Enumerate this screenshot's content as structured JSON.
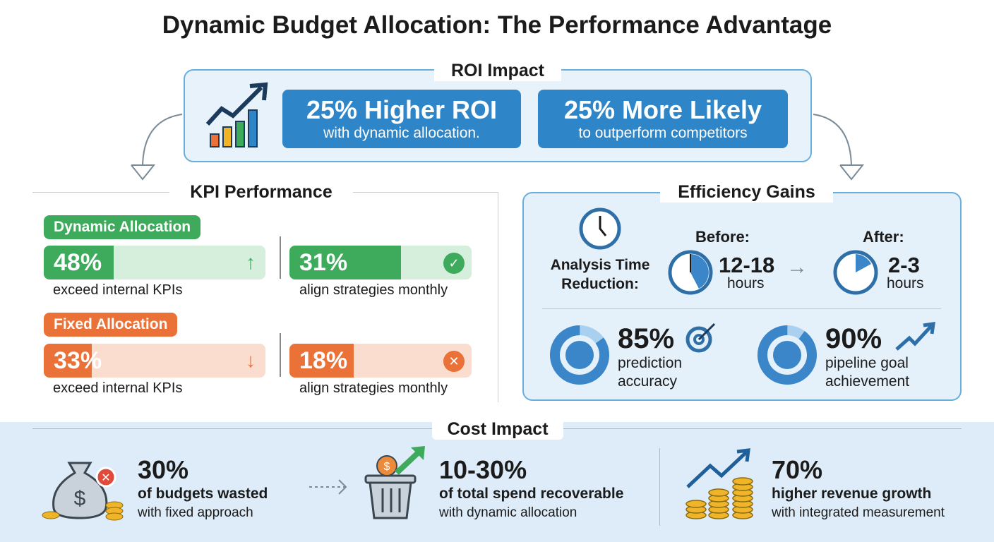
{
  "title": "Dynamic Budget Allocation: The Performance Advantage",
  "roi": {
    "heading": "ROI Impact",
    "cards": [
      {
        "value": "25% Higher ROI",
        "caption": "with dynamic allocation."
      },
      {
        "value": "25% More Likely",
        "caption": "to outperform competitors"
      }
    ]
  },
  "kpi": {
    "heading": "KPI Performance",
    "groups": [
      {
        "label": "Dynamic Allocation",
        "color": "#3daa5c",
        "metrics": [
          {
            "value": "48%",
            "percent": 48,
            "caption": "exceed internal KPIs",
            "icon": "arrow-up-icon"
          },
          {
            "value": "31%",
            "percent": 31,
            "caption": "align strategies monthly",
            "icon": "check-circle-icon"
          }
        ]
      },
      {
        "label": "Fixed Allocation",
        "color": "#ea7137",
        "metrics": [
          {
            "value": "33%",
            "percent": 33,
            "caption": "exceed internal KPIs",
            "icon": "arrow-down-icon"
          },
          {
            "value": "18%",
            "percent": 18,
            "caption": "align strategies monthly",
            "icon": "x-circle-icon"
          }
        ]
      }
    ]
  },
  "efficiency": {
    "heading": "Efficiency Gains",
    "analysis_label": "Analysis Time Reduction:",
    "before": {
      "label": "Before:",
      "value": "12-18",
      "unit": "hours"
    },
    "after": {
      "label": "After:",
      "value": "2-3",
      "unit": "hours"
    },
    "stats": [
      {
        "value": "85%",
        "percent": 85,
        "caption_line1": "prediction",
        "caption_line2": "accuracy",
        "icon": "target-icon"
      },
      {
        "value": "90%",
        "percent": 90,
        "caption_line1": "pipeline goal",
        "caption_line2": "achievement",
        "icon": "trend-up-icon"
      }
    ]
  },
  "cost": {
    "heading": "Cost Impact",
    "items": [
      {
        "value": "30%",
        "line1": "of budgets wasted",
        "line2": "with fixed approach",
        "icon": "money-bag-icon"
      },
      {
        "value": "10-30%",
        "line1": "of total spend recoverable",
        "line2": "with dynamic allocation",
        "icon": "trash-recover-icon"
      },
      {
        "value": "70%",
        "line1": "higher revenue growth",
        "line2": "with integrated measurement",
        "icon": "coins-growth-icon"
      }
    ]
  },
  "colors": {
    "blue": "#2e86c9",
    "green": "#3daa5c",
    "orange": "#ea7137"
  }
}
